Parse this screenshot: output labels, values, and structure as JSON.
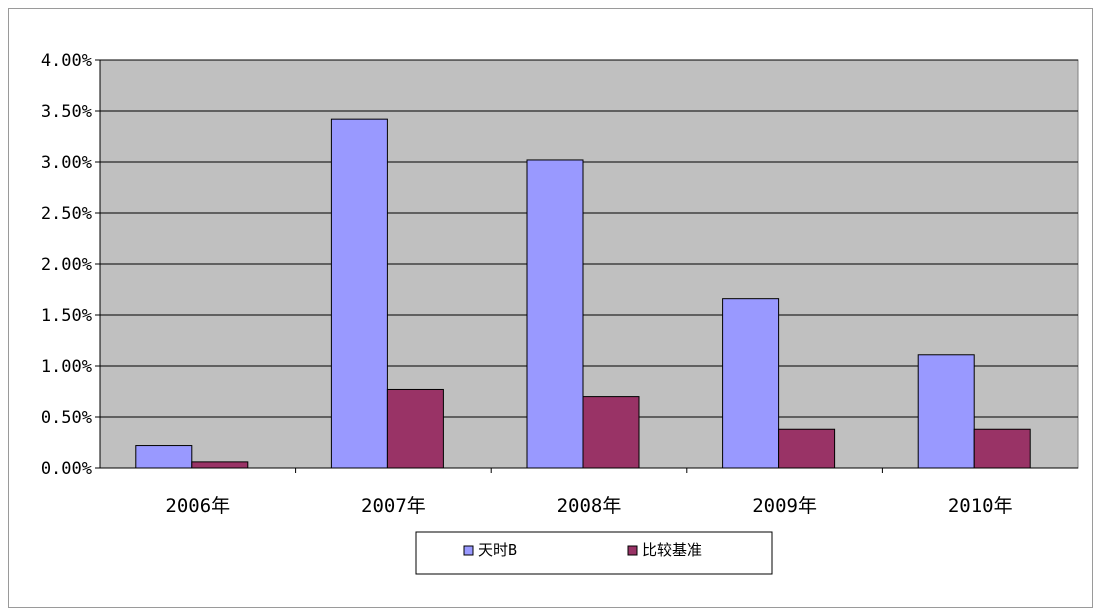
{
  "chart_data": {
    "type": "bar",
    "title": "",
    "xlabel": "",
    "ylabel": "",
    "categories": [
      "2006年",
      "2007年",
      "2008年",
      "2009年",
      "2010年"
    ],
    "series": [
      {
        "name": "天时B",
        "values": [
          0.22,
          3.42,
          3.02,
          1.66,
          1.11
        ],
        "color": "#9999ff"
      },
      {
        "name": "比较基准",
        "values": [
          0.06,
          0.77,
          0.7,
          0.38,
          0.38
        ],
        "color": "#993366"
      }
    ],
    "ylim": [
      0,
      4
    ],
    "yticks": [
      0,
      0.5,
      1,
      1.5,
      2,
      2.5,
      3,
      3.5,
      4
    ],
    "ytick_labels": [
      "0.00%",
      "0.50%",
      "1.00%",
      "1.50%",
      "2.00%",
      "2.50%",
      "3.00%",
      "3.50%",
      "4.00%"
    ],
    "grid": true,
    "legend_position": "bottom",
    "plot_background": "#c0c0c0"
  }
}
